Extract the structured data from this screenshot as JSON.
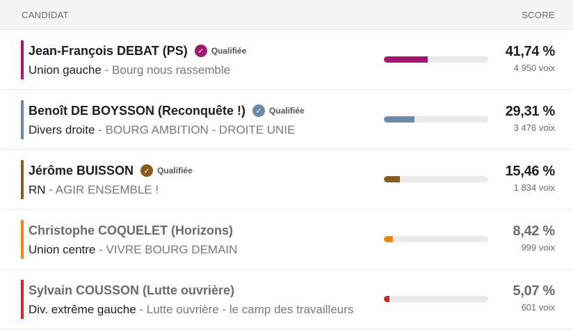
{
  "header": {
    "candidat_label": "CANDIDAT",
    "score_label": "SCORE"
  },
  "candidates": [
    {
      "name": "Jean-François DEBAT (PS)",
      "qualified": true,
      "badge_label": "Qualifiée",
      "nuance": "Union gauche",
      "separator": " - ",
      "list": "Bourg nous rassemble",
      "percent": "41,74 %",
      "percent_value": 41.74,
      "votes": "4 950 voix",
      "color": "#a2176f"
    },
    {
      "name": "Benoît DE BOYSSON (Reconquête !)",
      "qualified": true,
      "badge_label": "Qualifiée",
      "nuance": "Divers droite",
      "separator": " - ",
      "list": "BOURG AMBITION - DROITE UNIE",
      "percent": "29,31 %",
      "percent_value": 29.31,
      "votes": "3 476 voix",
      "color": "#6a8aab"
    },
    {
      "name": "Jérôme BUISSON",
      "qualified": true,
      "badge_label": "Qualifiée",
      "nuance": "RN",
      "separator": " - ",
      "list": "AGIR ENSEMBLE !",
      "percent": "15,46 %",
      "percent_value": 15.46,
      "votes": "1 834 voix",
      "color": "#8b5a1e"
    },
    {
      "name": "Christophe COQUELET (Horizons)",
      "qualified": false,
      "badge_label": "",
      "nuance": "Union centre",
      "separator": " - ",
      "list": "VIVRE BOURG DEMAIN",
      "percent": "8,42 %",
      "percent_value": 8.42,
      "votes": "999 voix",
      "color": "#f0860f"
    },
    {
      "name": "Sylvain COUSSON (Lutte ouvrière)",
      "qualified": false,
      "badge_label": "",
      "nuance": "Div. extrême gauche",
      "separator": " - ",
      "list": "Lutte ouvrière - le camp des travailleurs",
      "percent": "5,07 %",
      "percent_value": 5.07,
      "votes": "601 voix",
      "color": "#c8262e"
    }
  ]
}
